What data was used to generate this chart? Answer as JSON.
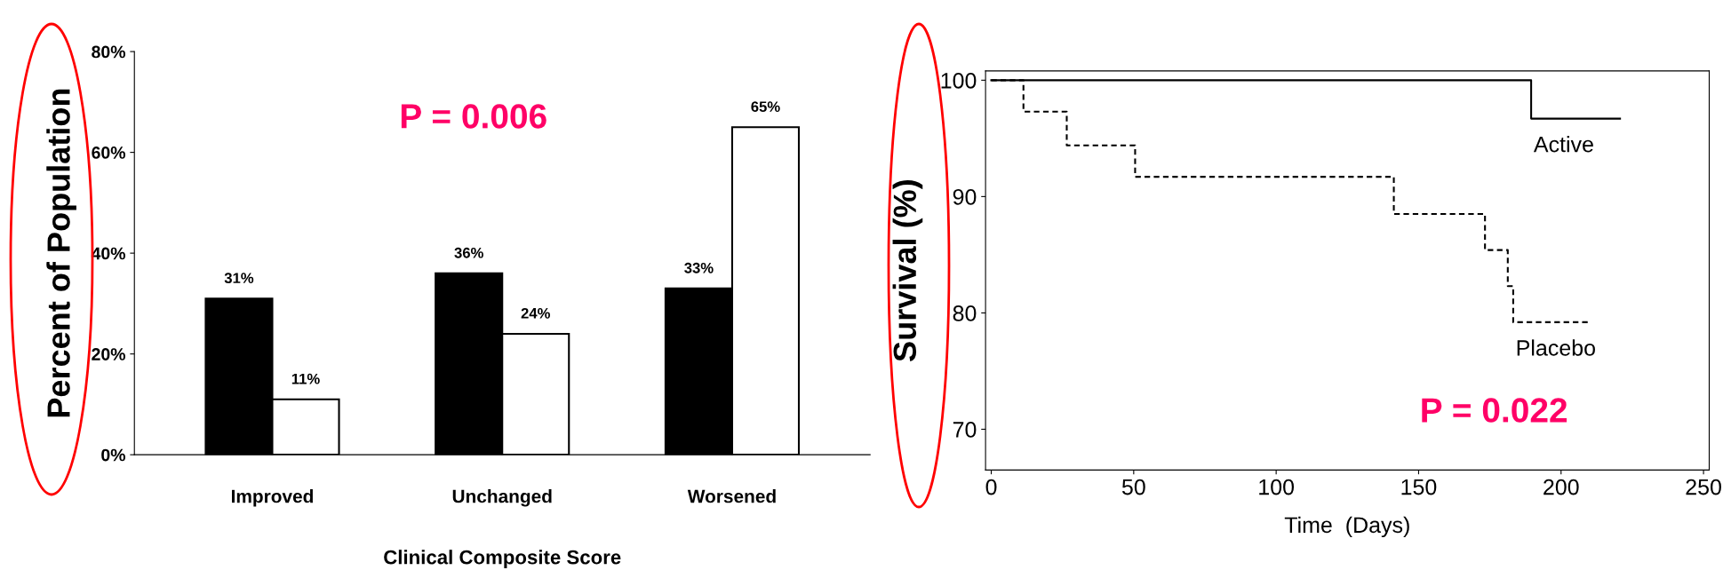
{
  "chart_data": [
    {
      "type": "bar",
      "xlabel": "Clinical Composite Score",
      "ylabel": "Percent of Population",
      "categories": [
        "Improved",
        "Unchanged",
        "Worsened"
      ],
      "series": [
        {
          "color": "#000000",
          "values": [
            31,
            36,
            33
          ],
          "value_labels": [
            "31%",
            "36%",
            "33%"
          ]
        },
        {
          "color": "#ffffff",
          "values": [
            11,
            24,
            65
          ],
          "value_labels": [
            "11%",
            "24%",
            "65%"
          ]
        }
      ],
      "ylim": [
        0,
        80
      ],
      "yticks": [
        {
          "value": 0,
          "label": "0%"
        },
        {
          "value": 20,
          "label": "20%"
        },
        {
          "value": 40,
          "label": "40%"
        },
        {
          "value": 60,
          "label": "60%"
        },
        {
          "value": 80,
          "label": "80%"
        }
      ],
      "grid": false,
      "annotations": [
        "P = 0.006"
      ]
    },
    {
      "type": "step",
      "xlabel": "Time  (Days)",
      "ylabel": "Survival (%)",
      "series": [
        {
          "name": "Active",
          "color": "#000000",
          "line_style": "solid",
          "x": [
            0,
            189.5,
            220.7
          ],
          "values": [
            100,
            96.7,
            96.7
          ]
        },
        {
          "name": "Placebo",
          "color": "#000000",
          "line_style": "dashed",
          "x": [
            0,
            11.3,
            26.5,
            50.5,
            141.3,
            173.3,
            181.3,
            183.2,
            209.5
          ],
          "values": [
            100,
            97.3,
            94.4,
            91.7,
            88.5,
            85.4,
            82.3,
            79.2,
            79.2
          ]
        }
      ],
      "xlim": [
        -2,
        252
      ],
      "xticks": [
        0,
        50,
        100,
        150,
        200,
        250
      ],
      "ylim": [
        66.5,
        100.8
      ],
      "yticks": [
        70,
        80,
        90,
        100
      ],
      "grid": false,
      "annotations": [
        "P = 0.022"
      ]
    }
  ]
}
